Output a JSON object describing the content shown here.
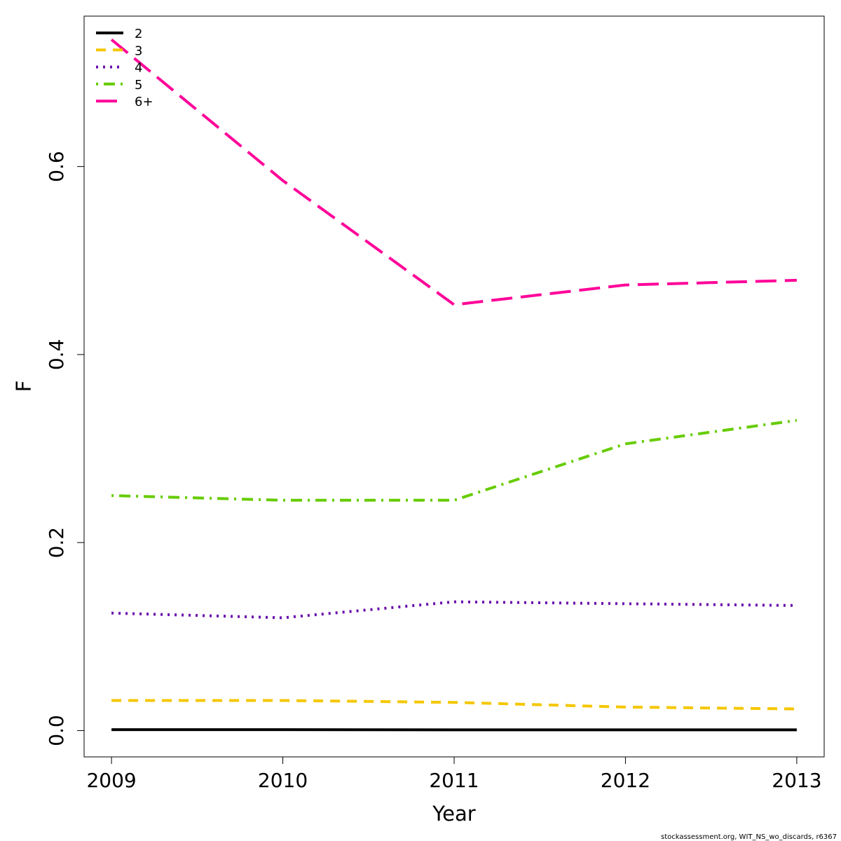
{
  "chart_data": {
    "type": "line",
    "xlabel": "Year",
    "ylabel": "F",
    "x": [
      2009,
      2010,
      2011,
      2012,
      2013
    ],
    "xlim": [
      2008.84,
      2013.16
    ],
    "ylim": [
      -0.028,
      0.76
    ],
    "yticks": [
      0.0,
      0.2,
      0.4,
      0.6
    ],
    "ytick_labels": [
      "0.0",
      "0.2",
      "0.4",
      "0.6"
    ],
    "xtick_labels": [
      "2009",
      "2010",
      "2011",
      "2012",
      "2013"
    ],
    "legend_position": "top-left",
    "grid": false,
    "series": [
      {
        "name": "2",
        "color": "#000000",
        "dash": "solid",
        "values": [
          0.001,
          0.001,
          0.0008,
          0.0008,
          0.0008
        ]
      },
      {
        "name": "3",
        "color": "#F5C700",
        "dash": "dashed",
        "values": [
          0.032,
          0.032,
          0.03,
          0.025,
          0.023
        ]
      },
      {
        "name": "4",
        "color": "#6A0DAD",
        "dash": "dotted",
        "values": [
          0.125,
          0.12,
          0.137,
          0.135,
          0.133
        ]
      },
      {
        "name": "5",
        "color": "#66CC00",
        "dash": "dotdash",
        "values": [
          0.25,
          0.245,
          0.245,
          0.305,
          0.33
        ]
      },
      {
        "name": "6+",
        "color": "#FF0099",
        "dash": "longdash",
        "values": [
          0.735,
          0.585,
          0.453,
          0.474,
          0.479
        ]
      }
    ]
  },
  "footer": {
    "text": "stockassessment.org, WIT_NS_wo_discards, r6367"
  }
}
